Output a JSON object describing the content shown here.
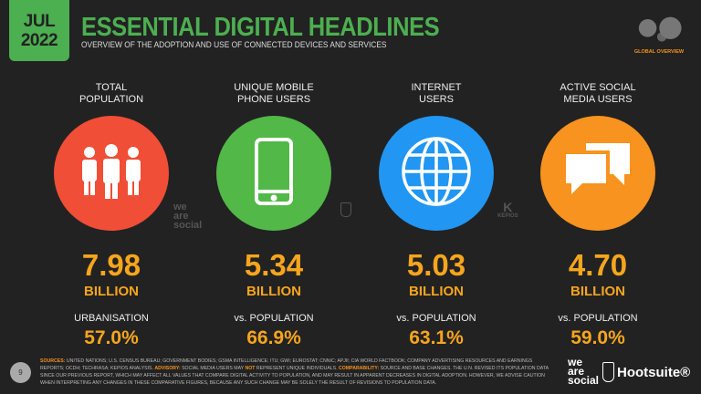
{
  "header": {
    "month": "JUL",
    "year": "2022",
    "title": "ESSENTIAL DIGITAL HEADLINES",
    "subtitle": "OVERVIEW OF THE ADOPTION AND USE OF CONNECTED DEVICES AND SERVICES",
    "badge": "GLOBAL OVERVIEW"
  },
  "stats": [
    {
      "head1": "TOTAL",
      "head2": "POPULATION",
      "icon": "people-icon",
      "color": "#f04e36",
      "value": "7.98",
      "unit": "BILLION",
      "label": "URBANISATION",
      "pct": "57.0%"
    },
    {
      "head1": "UNIQUE MOBILE",
      "head2": "PHONE USERS",
      "icon": "mobile-phone-icon",
      "color": "#52b848",
      "value": "5.34",
      "unit": "BILLION",
      "label": "vs. POPULATION",
      "pct": "66.9%"
    },
    {
      "head1": "INTERNET",
      "head2": "USERS",
      "icon": "globe-icon",
      "color": "#2196f3",
      "value": "5.03",
      "unit": "BILLION",
      "label": "vs. POPULATION",
      "pct": "63.1%"
    },
    {
      "head1": "ACTIVE SOCIAL",
      "head2": "MEDIA USERS",
      "icon": "speech-bubbles-icon",
      "color": "#f7931e",
      "value": "4.70",
      "unit": "BILLION",
      "label": "vs. POPULATION",
      "pct": "59.0%"
    }
  ],
  "footer": {
    "page": "9",
    "sources_label": "SOURCES:",
    "sources": " UNITED NATIONS; U.S. CENSUS BUREAU; GOVERNMENT BODIES; GSMA INTELLIGENCE; ITU; GWI; EUROSTAT; CNNIC; APJII; CIA WORLD FACTBOOK; COMPANY ADVERTISING RESOURCES AND EARNINGS REPORTS; OCDH; TECHRASA; KEPIOS ANALYSIS. ",
    "advisory_label": "ADVISORY:",
    "advisory_a": " SOCIAL MEDIA USERS MAY ",
    "advisory_not": "NOT",
    "advisory_b": " REPRESENT UNIQUE INDIVIDUALS. ",
    "comparability_label": "COMPARABILITY:",
    "comparability": " SOURCE AND BASE CHANGES. THE U.N. REVISED ITS POPULATION DATA SINCE OUR PREVIOUS REPORT, WHICH MAY AFFECT ALL VALUES THAT COMPARE DIGITAL ACTIVITY TO POPULATION, AND MAY RESULT IN APPARENT DECREASES IN DIGITAL ADOPTION. HOWEVER, WE ADVISE CAUTION WHEN INTERPRETING ANY CHANGES IN THESE COMPARATIVE FIGURES, BECAUSE ANY SUCH CHANGE MAY BE SOLELY THE RESULT OF REVISIONS TO POPULATION DATA.",
    "we": "we",
    "are": "are",
    "social": "social",
    "hootsuite": "Hootsuite®",
    "kepios": "KEPIOS"
  }
}
